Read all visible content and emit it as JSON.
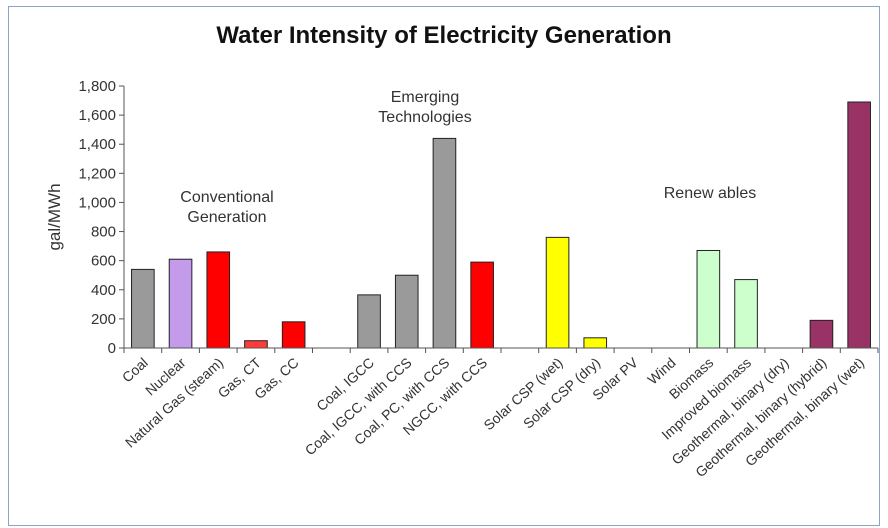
{
  "chart_data": {
    "type": "bar",
    "title": "Water Intensity of  Electricity Generation",
    "ylabel": "gal/MWh",
    "xlabel": "",
    "ylim": [
      0,
      1800
    ],
    "yticks": [
      "0",
      "200",
      "400",
      "600",
      "800",
      "1,000",
      "1,200",
      "1,400",
      "1,600",
      "1,800"
    ],
    "grid": false,
    "categories": [
      "Coal",
      "Nuclear",
      "Natural Gas (steam)",
      "Gas, CT",
      "Gas, CC",
      "",
      "Coal, IGCC",
      "Coal, IGCC, with CCS",
      "Coal, PC, with CCS",
      "NGCC, with CCS",
      "",
      "Solar CSP (wet)",
      "Solar CSP (dry)",
      "Solar PV",
      "Wind",
      "Biomass",
      "Improved biomass",
      "Geothermal, binary (dry)",
      "Geothermal, binary (hybrid)",
      "Geothermal, binary (wet)"
    ],
    "values": [
      540,
      610,
      660,
      50,
      180,
      null,
      365,
      500,
      1440,
      590,
      null,
      760,
      70,
      0,
      0,
      670,
      470,
      0,
      190,
      1690
    ],
    "colors": [
      "#9a9a9a",
      "#c39bea",
      "#ff0000",
      "#ff3b3b",
      "#ff0000",
      "#ffffff",
      "#9a9a9a",
      "#9a9a9a",
      "#9a9a9a",
      "#ff0000",
      "#ffffff",
      "#ffff00",
      "#ffff00",
      "#ffff00",
      "#ffffff",
      "#ccffcc",
      "#ccffcc",
      "#ccffcc",
      "#993366",
      "#993366"
    ],
    "annotations": [
      "Conventional Generation",
      "Emerging Technologies",
      "Renew ables"
    ]
  }
}
